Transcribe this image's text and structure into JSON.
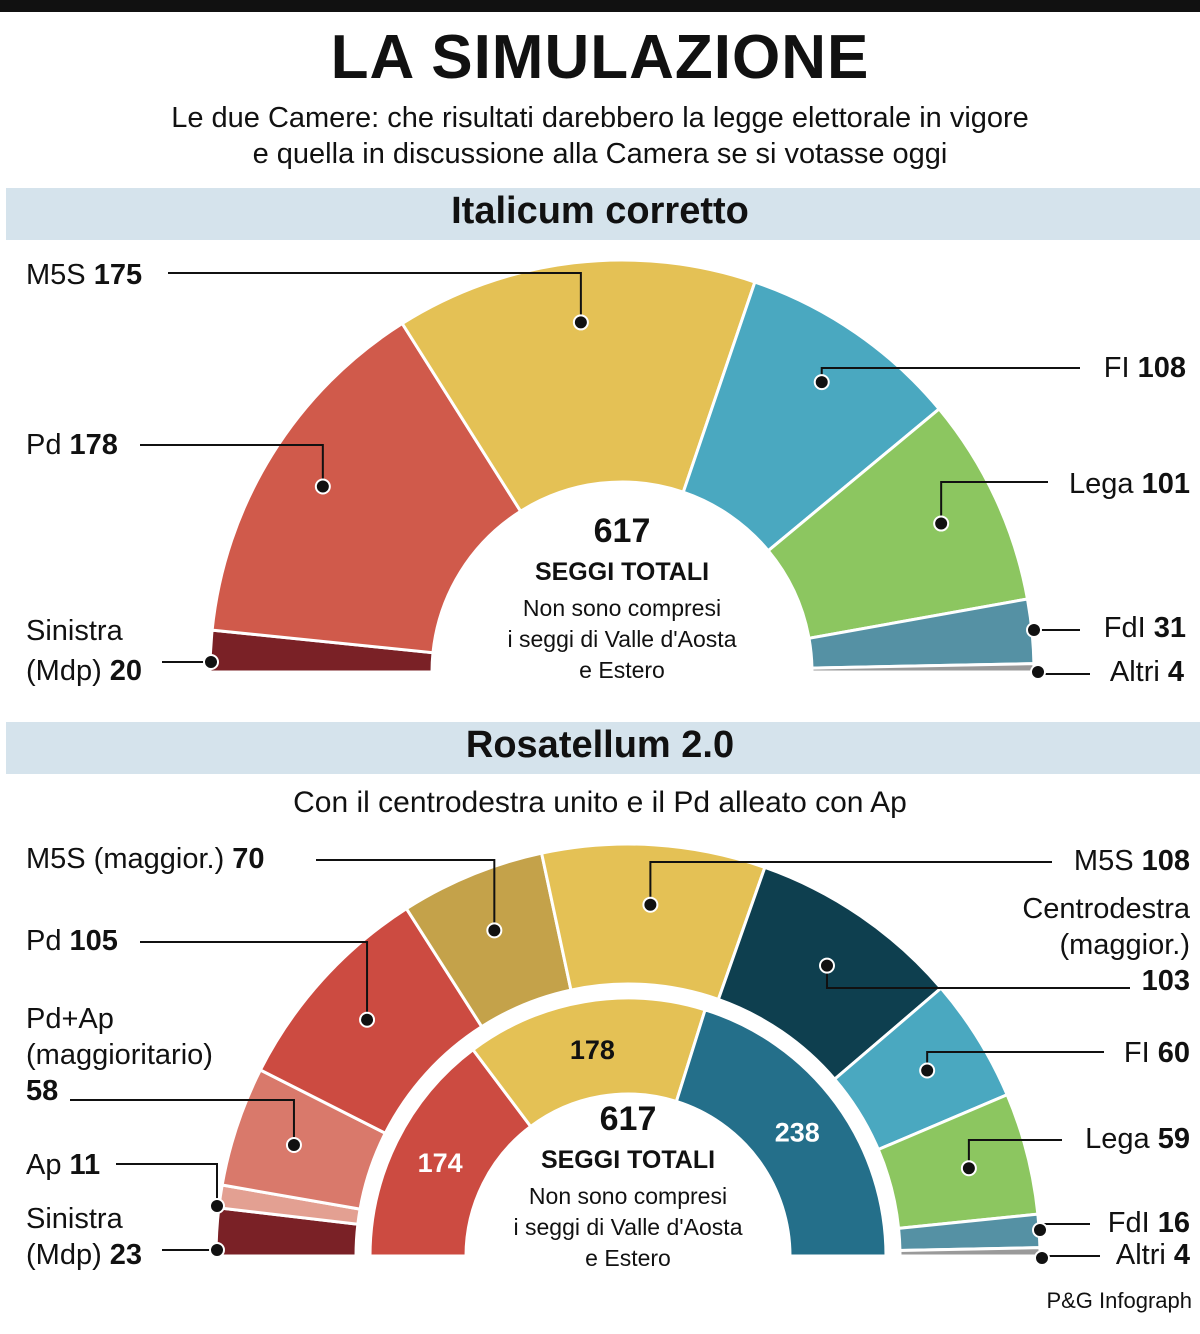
{
  "header": {
    "title": "LA SIMULAZIONE",
    "subtitle_line1": "Le due Camere: che risultati darebbero la legge elettorale in vigore",
    "subtitle_line2": "e quella in discussione alla Camera se si votasse oggi"
  },
  "footer": {
    "credit": "P&G Infograph"
  },
  "chart_data": [
    {
      "type": "pie",
      "variant": "semicircle",
      "title": "Italicum corretto",
      "center": {
        "total": "617",
        "total_label": "SEGGI TOTALI",
        "note_lines": [
          "Non sono compresi",
          "i seggi di Valle d'Aosta",
          "e Estero"
        ]
      },
      "slices": [
        {
          "party": "Sinistra",
          "party2": "(Mdp)",
          "seats": 20,
          "color": "#7a2126"
        },
        {
          "party": "Pd",
          "seats": 178,
          "color": "#d05a4b"
        },
        {
          "party": "M5S",
          "seats": 175,
          "color": "#e4c155"
        },
        {
          "party": "FI",
          "seats": 108,
          "color": "#4aa8c0"
        },
        {
          "party": "Lega",
          "seats": 101,
          "color": "#8cc660"
        },
        {
          "party": "FdI",
          "seats": 31,
          "color": "#5591a4"
        },
        {
          "party": "Altri",
          "seats": 4,
          "color": "#9a9a9a"
        }
      ]
    },
    {
      "type": "pie",
      "variant": "semicircle-two-rings",
      "title": "Rosatellum 2.0",
      "subtitle": "Con il centrodestra unito e il Pd alleato con Ap",
      "center": {
        "total": "617",
        "total_label": "SEGGI TOTALI",
        "note_lines": [
          "Non sono compresi",
          "i seggi di Valle d'Aosta",
          "e Estero"
        ]
      },
      "outer_slices": [
        {
          "party": "Sinistra",
          "party2": "(Mdp)",
          "seats": 23,
          "color": "#7a2126"
        },
        {
          "party": "Ap",
          "seats": 11,
          "color": "#e3a092"
        },
        {
          "party": "Pd+Ap",
          "party2": "(maggioritario)",
          "seats": 58,
          "color": "#d9796b"
        },
        {
          "party": "Pd",
          "seats": 105,
          "color": "#cc4b41"
        },
        {
          "party": "M5S (maggior.)",
          "seats": 70,
          "color": "#c4a24a"
        },
        {
          "party": "M5S",
          "seats": 108,
          "color": "#e4c155"
        },
        {
          "party": "Centrodestra",
          "party2": "(maggior.)",
          "seats": 103,
          "color": "#0e3f4f"
        },
        {
          "party": "FI",
          "seats": 60,
          "color": "#4aa8c0"
        },
        {
          "party": "Lega",
          "seats": 59,
          "color": "#8cc660"
        },
        {
          "party": "FdI",
          "seats": 16,
          "color": "#5591a4"
        },
        {
          "party": "Altri",
          "seats": 4,
          "color": "#9a9a9a"
        }
      ],
      "inner_slices": [
        {
          "label": "174",
          "seats": 174,
          "color": "#cc4b41"
        },
        {
          "label": "178",
          "seats": 178,
          "color": "#e4c155"
        },
        {
          "label": "238",
          "seats": 238,
          "color": "#246f8a"
        }
      ],
      "inner_outer_colors": {
        "left_stub": "#7a2126",
        "right_stub": "#9a9a9a"
      }
    }
  ]
}
